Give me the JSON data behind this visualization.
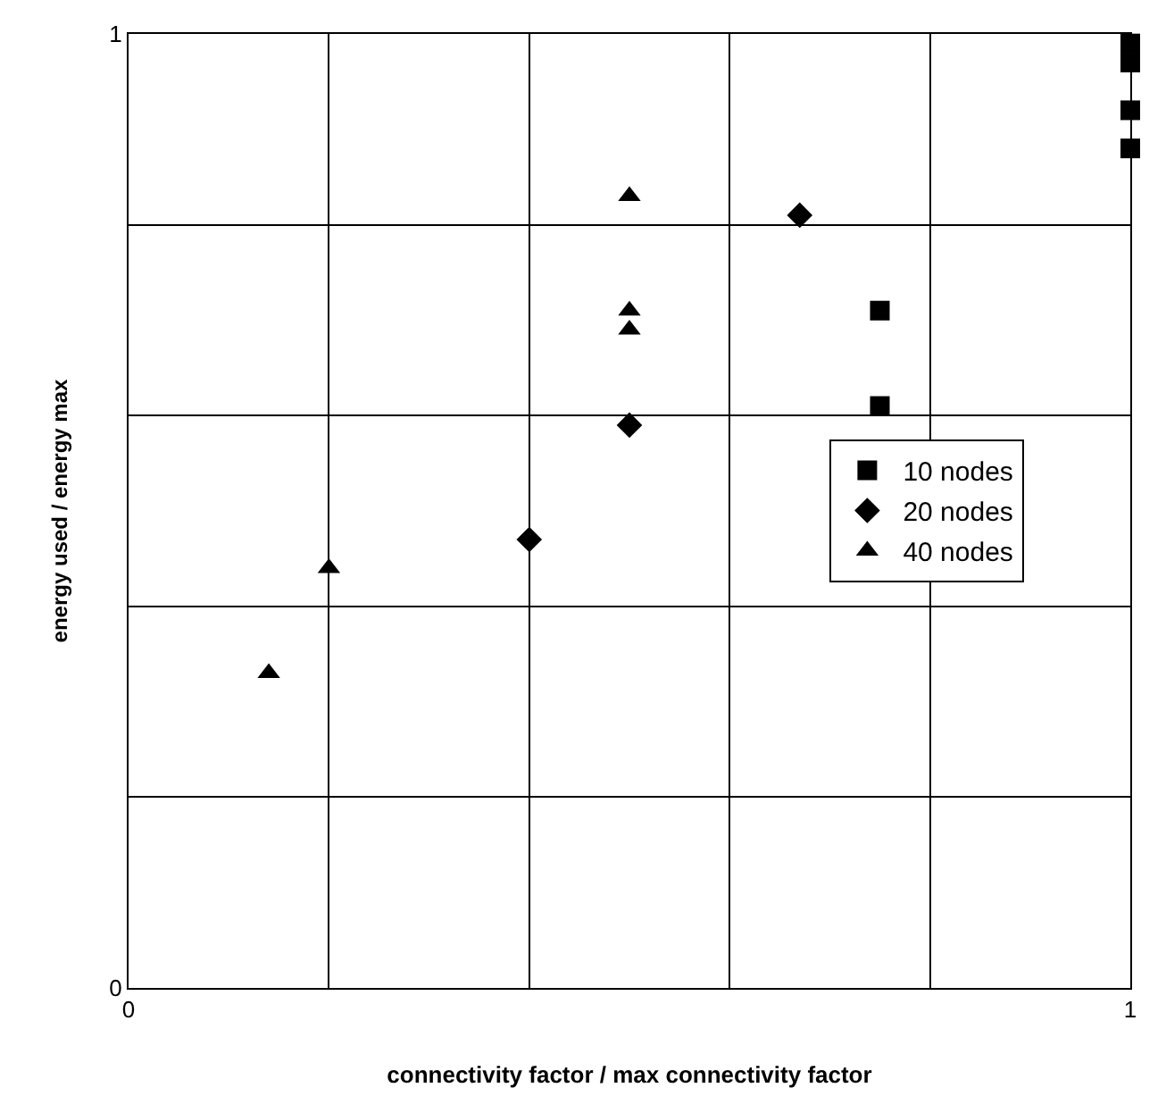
{
  "chart_data": {
    "type": "scatter",
    "xlabel": "connectivity factor / max connectivity factor",
    "ylabel": "energy used / energy max",
    "xlim": [
      0,
      1
    ],
    "ylim": [
      0,
      1
    ],
    "xticks": [
      0,
      {
        "value": 0.2,
        "label": null
      },
      {
        "value": 0.4,
        "label": null
      },
      {
        "value": 0.6,
        "label": null
      },
      {
        "value": 0.8,
        "label": null
      },
      1
    ],
    "yticks": [
      0,
      {
        "value": 0.2,
        "label": null
      },
      {
        "value": 0.4,
        "label": null
      },
      {
        "value": 0.6,
        "label": null
      },
      {
        "value": 0.8,
        "label": null
      },
      1
    ],
    "grid": true,
    "legend": "right",
    "series": [
      {
        "name": "10 nodes",
        "color": "#000000",
        "marker": "square",
        "x": [
          0.75,
          0.75,
          1,
          1,
          1,
          1
        ],
        "values": [
          0.71,
          0.61,
          0.99,
          0.97,
          0.92,
          0.88
        ]
      },
      {
        "name": "20 nodes",
        "color": "#000000",
        "marker": "diamond",
        "x": [
          0.4,
          0.5,
          0.67
        ],
        "values": [
          0.47,
          0.59,
          0.81
        ]
      },
      {
        "name": "40 nodes",
        "color": "#000000",
        "marker": "triangle",
        "x": [
          0.14,
          0.2,
          0.5,
          0.5,
          0.5
        ],
        "values": [
          0.33,
          0.44,
          0.83,
          0.71,
          0.69
        ]
      }
    ]
  }
}
